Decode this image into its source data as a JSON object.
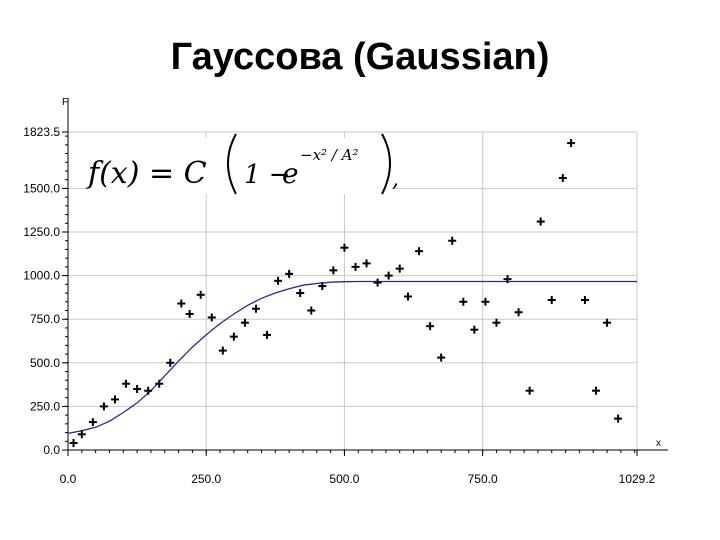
{
  "slide": {
    "title": "Гауссова (Gaussian)"
  },
  "chart_data": {
    "type": "scatter",
    "title": "Гауссова (Gaussian)",
    "xlabel": "x",
    "ylabel": "F",
    "xlim": [
      0,
      1029.2
    ],
    "ylim": [
      0,
      1823.5
    ],
    "x_ticks": [
      0,
      250,
      500,
      750,
      1029.2
    ],
    "x_tick_labels": [
      "0.0",
      "250.0",
      "500.0",
      "750.0",
      "1029.2"
    ],
    "y_ticks": [
      0,
      250,
      500,
      750,
      1000,
      1250,
      1500,
      1823.5
    ],
    "y_tick_labels": [
      "0.0",
      "250.0",
      "500.0",
      "750.0",
      "1000.0",
      "1250.0",
      "1500.0",
      "1823.5"
    ],
    "grid": true,
    "formula": {
      "lhs": "f(x) = C",
      "one": "1 −",
      "base": "e",
      "exponent": "−x² / A²",
      "tail": ","
    },
    "series": [
      {
        "kind": "points",
        "color": "#000000",
        "points": [
          [
            10,
            40
          ],
          [
            25,
            90
          ],
          [
            45,
            160
          ],
          [
            65,
            250
          ],
          [
            85,
            290
          ],
          [
            105,
            380
          ],
          [
            125,
            350
          ],
          [
            145,
            340
          ],
          [
            165,
            380
          ],
          [
            185,
            500
          ],
          [
            205,
            840
          ],
          [
            220,
            780
          ],
          [
            240,
            890
          ],
          [
            260,
            760
          ],
          [
            280,
            570
          ],
          [
            300,
            650
          ],
          [
            320,
            730
          ],
          [
            340,
            810
          ],
          [
            360,
            660
          ],
          [
            380,
            970
          ],
          [
            400,
            1010
          ],
          [
            420,
            900
          ],
          [
            440,
            800
          ],
          [
            460,
            940
          ],
          [
            480,
            1030
          ],
          [
            500,
            1160
          ],
          [
            520,
            1050
          ],
          [
            540,
            1070
          ],
          [
            560,
            960
          ],
          [
            580,
            1000
          ],
          [
            600,
            1040
          ],
          [
            615,
            880
          ],
          [
            635,
            1140
          ],
          [
            655,
            710
          ],
          [
            675,
            530
          ],
          [
            695,
            1200
          ],
          [
            715,
            850
          ],
          [
            735,
            690
          ],
          [
            755,
            850
          ],
          [
            775,
            730
          ],
          [
            795,
            980
          ],
          [
            815,
            790
          ],
          [
            835,
            340
          ],
          [
            855,
            1310
          ],
          [
            875,
            860
          ],
          [
            895,
            1560
          ],
          [
            910,
            1760
          ],
          [
            935,
            860
          ],
          [
            955,
            340
          ],
          [
            975,
            730
          ],
          [
            995,
            180
          ]
        ]
      },
      {
        "kind": "fit-curve",
        "color": "#1f2f8a",
        "x": [
          0,
          25,
          50,
          75,
          100,
          125,
          150,
          175,
          200,
          225,
          250,
          275,
          300,
          325,
          350,
          375,
          400,
          425,
          450,
          475,
          500,
          525,
          550,
          600,
          700,
          800,
          900,
          1029.2
        ],
        "y": [
          95,
          110,
          130,
          165,
          215,
          270,
          340,
          425,
          510,
          590,
          660,
          725,
          780,
          830,
          870,
          900,
          925,
          945,
          955,
          962,
          965,
          966,
          966,
          966,
          966,
          966,
          966,
          966
        ]
      }
    ]
  }
}
